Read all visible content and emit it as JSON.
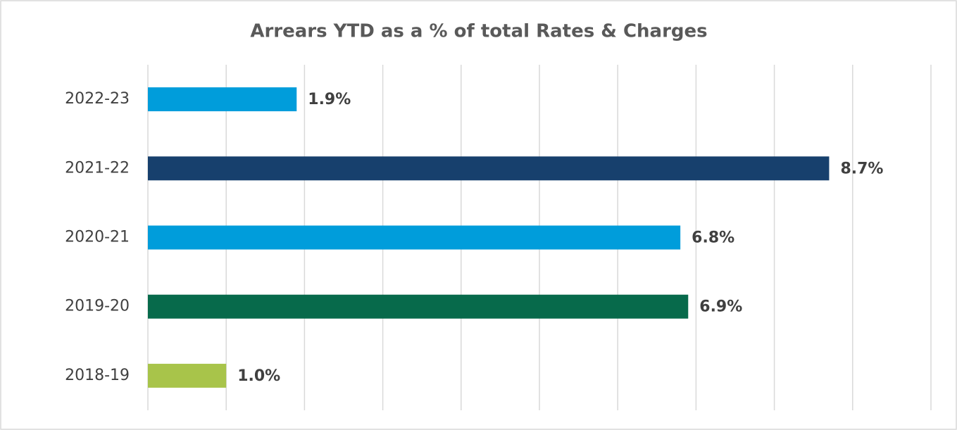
{
  "chart_data": {
    "type": "barh",
    "title": "Arrears YTD as a % of total Rates & Charges",
    "categories": [
      "2022-23",
      "2021-22",
      "2020-21",
      "2019-20",
      "2018-19"
    ],
    "values": [
      1.9,
      8.7,
      6.8,
      6.9,
      1.0
    ],
    "value_labels": [
      "1.9%",
      "8.7%",
      "6.8%",
      "6.9%",
      "1.0%"
    ],
    "colors": [
      "#009ddb",
      "#17406d",
      "#009ddb",
      "#076a4b",
      "#a8c44a"
    ],
    "xlim": [
      0,
      10
    ],
    "xticks": [
      0,
      1,
      2,
      3,
      4,
      5,
      6,
      7,
      8,
      9,
      10
    ],
    "grid": true
  }
}
